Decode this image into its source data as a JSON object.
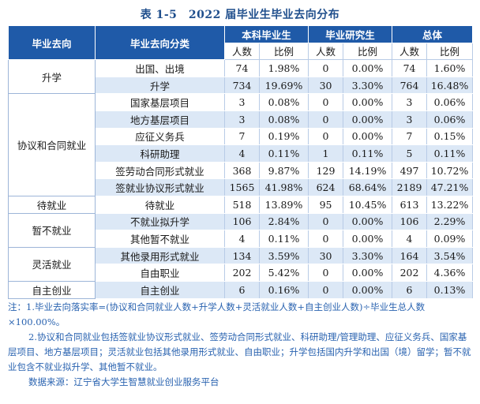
{
  "title": "表 1-5　2022 届毕业生毕业去向分布",
  "headers": {
    "destination": "毕业去向",
    "category": "毕业去向分类",
    "undergrad": "本科毕业生",
    "postgrad": "毕业研究生",
    "total": "总体",
    "count": "人数",
    "ratio": "比例"
  },
  "groups": [
    {
      "name": "升学",
      "rows": [
        {
          "cat": "出国、出境",
          "u": "74",
          "ur": "1.98%",
          "p": "0",
          "pr": "0.00%",
          "t": "74",
          "tr": "1.60%"
        },
        {
          "cat": "升学",
          "u": "734",
          "ur": "19.69%",
          "p": "30",
          "pr": "3.30%",
          "t": "764",
          "tr": "16.48%"
        }
      ]
    },
    {
      "name": "协议和合同就业",
      "rows": [
        {
          "cat": "国家基层项目",
          "u": "3",
          "ur": "0.08%",
          "p": "0",
          "pr": "0.00%",
          "t": "3",
          "tr": "0.06%"
        },
        {
          "cat": "地方基层项目",
          "u": "3",
          "ur": "0.08%",
          "p": "0",
          "pr": "0.00%",
          "t": "3",
          "tr": "0.06%"
        },
        {
          "cat": "应征义务兵",
          "u": "7",
          "ur": "0.19%",
          "p": "0",
          "pr": "0.00%",
          "t": "7",
          "tr": "0.15%"
        },
        {
          "cat": "科研助理",
          "u": "4",
          "ur": "0.11%",
          "p": "1",
          "pr": "0.11%",
          "t": "5",
          "tr": "0.11%"
        },
        {
          "cat": "签劳动合同形式就业",
          "u": "368",
          "ur": "9.87%",
          "p": "129",
          "pr": "14.19%",
          "t": "497",
          "tr": "10.72%"
        },
        {
          "cat": "签就业协议形式就业",
          "u": "1565",
          "ur": "41.98%",
          "p": "624",
          "pr": "68.64%",
          "t": "2189",
          "tr": "47.21%"
        }
      ]
    },
    {
      "name": "待就业",
      "rows": [
        {
          "cat": "待就业",
          "u": "518",
          "ur": "13.89%",
          "p": "95",
          "pr": "10.45%",
          "t": "613",
          "tr": "13.22%"
        }
      ]
    },
    {
      "name": "暂不就业",
      "rows": [
        {
          "cat": "不就业拟升学",
          "u": "106",
          "ur": "2.84%",
          "p": "0",
          "pr": "0.00%",
          "t": "106",
          "tr": "2.29%"
        },
        {
          "cat": "其他暂不就业",
          "u": "4",
          "ur": "0.11%",
          "p": "0",
          "pr": "0.00%",
          "t": "4",
          "tr": "0.09%"
        }
      ]
    },
    {
      "name": "灵活就业",
      "rows": [
        {
          "cat": "其他录用形式就业",
          "u": "134",
          "ur": "3.59%",
          "p": "30",
          "pr": "3.30%",
          "t": "164",
          "tr": "3.54%"
        },
        {
          "cat": "自由职业",
          "u": "202",
          "ur": "5.42%",
          "p": "0",
          "pr": "0.00%",
          "t": "202",
          "tr": "4.36%"
        }
      ]
    },
    {
      "name": "自主创业",
      "rows": [
        {
          "cat": "自主创业",
          "u": "6",
          "ur": "0.16%",
          "p": "0",
          "pr": "0.00%",
          "t": "6",
          "tr": "0.13%"
        }
      ]
    }
  ],
  "notes": {
    "note1": "注：1.毕业去向落实率=(协议和合同就业人数+升学人数+灵活就业人数+自主创业人数)÷毕业生总人数×100.00%。",
    "note2": "2.协议和合同就业包括签就业协议形式就业、签劳动合同形式就业、科研助理/管理助理、应征义务兵、国家基层项目、地方基层项目；灵活就业包括其他录用形式就业、自由职业；升学包括国内升学和出国（境）留学；暂不就业包含不就业拟升学、其他暂不就业。",
    "source": "数据来源：辽宁省大学生智慧就业创业服务平台"
  }
}
